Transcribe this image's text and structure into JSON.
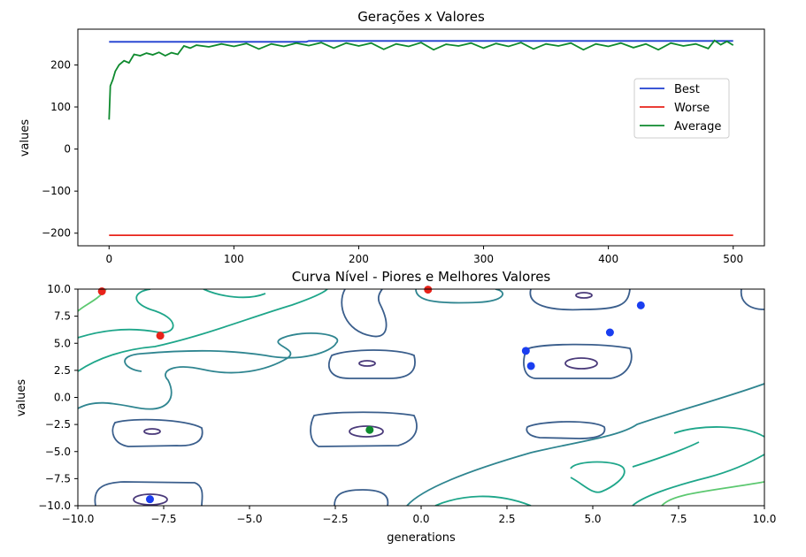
{
  "chart_data": [
    {
      "type": "line",
      "title": "Gerações x Valores",
      "xlabel": "",
      "ylabel": "values",
      "xlim": [
        -25,
        525
      ],
      "ylim": [
        -230,
        285
      ],
      "xticks": [
        0,
        100,
        200,
        300,
        400,
        500
      ],
      "yticks": [
        -200,
        -100,
        0,
        100,
        200
      ],
      "legend_position": "center-right",
      "series": [
        {
          "name": "Best",
          "color": "#1f3fd0",
          "points": [
            [
              0,
              255
            ],
            [
              158,
              255
            ],
            [
              160,
              257
            ],
            [
              500,
              257
            ]
          ]
        },
        {
          "name": "Worse",
          "color": "#e8231a",
          "points": [
            [
              0,
              -205
            ],
            [
              500,
              -205
            ]
          ]
        },
        {
          "name": "Average",
          "color": "#0e8a2e",
          "points": [
            [
              0,
              70
            ],
            [
              1,
              150
            ],
            [
              3,
              165
            ],
            [
              5,
              185
            ],
            [
              8,
              200
            ],
            [
              12,
              210
            ],
            [
              16,
              205
            ],
            [
              20,
              225
            ],
            [
              25,
              222
            ],
            [
              30,
              228
            ],
            [
              35,
              224
            ],
            [
              40,
              230
            ],
            [
              45,
              222
            ],
            [
              50,
              229
            ],
            [
              55,
              225
            ],
            [
              60,
              245
            ],
            [
              65,
              240
            ],
            [
              70,
              247
            ],
            [
              80,
              243
            ],
            [
              90,
              250
            ],
            [
              100,
              244
            ],
            [
              110,
              251
            ],
            [
              120,
              238
            ],
            [
              130,
              250
            ],
            [
              140,
              244
            ],
            [
              150,
              252
            ],
            [
              160,
              246
            ],
            [
              170,
              253
            ],
            [
              180,
              240
            ],
            [
              190,
              252
            ],
            [
              200,
              245
            ],
            [
              210,
              252
            ],
            [
              220,
              237
            ],
            [
              230,
              250
            ],
            [
              240,
              244
            ],
            [
              250,
              253
            ],
            [
              260,
              236
            ],
            [
              270,
              249
            ],
            [
              280,
              245
            ],
            [
              290,
              252
            ],
            [
              300,
              240
            ],
            [
              310,
              251
            ],
            [
              320,
              244
            ],
            [
              330,
              253
            ],
            [
              340,
              238
            ],
            [
              350,
              250
            ],
            [
              360,
              245
            ],
            [
              370,
              252
            ],
            [
              380,
              236
            ],
            [
              390,
              250
            ],
            [
              400,
              244
            ],
            [
              410,
              252
            ],
            [
              420,
              241
            ],
            [
              430,
              250
            ],
            [
              440,
              236
            ],
            [
              450,
              252
            ],
            [
              460,
              245
            ],
            [
              470,
              250
            ],
            [
              480,
              239
            ],
            [
              485,
              258
            ],
            [
              490,
              248
            ],
            [
              495,
              256
            ],
            [
              500,
              247
            ]
          ]
        }
      ]
    },
    {
      "type": "contour",
      "title": "Curva Nível - Piores e Melhores Valores",
      "xlabel": "generations",
      "ylabel": "values",
      "xlim": [
        -10,
        10
      ],
      "ylim": [
        -10,
        10
      ],
      "xticks": [
        -10.0,
        -7.5,
        -5.0,
        -2.5,
        0.0,
        2.5,
        5.0,
        7.5,
        10.0
      ],
      "yticks": [
        -10.0,
        -7.5,
        -5.0,
        -2.5,
        0.0,
        2.5,
        5.0,
        7.5,
        10.0
      ],
      "worst_points": {
        "color": "#e8231a",
        "x": [
          -9.3,
          -7.6,
          0.2
        ],
        "y": [
          9.8,
          5.7,
          9.95
        ]
      },
      "best_points": {
        "color": "#1a3ef0",
        "x": [
          6.4,
          5.5,
          3.05,
          3.2,
          -7.9
        ],
        "y": [
          8.5,
          6.0,
          4.3,
          2.9,
          -9.4
        ]
      },
      "center_point": {
        "color": "#0e8a2e",
        "x": [
          -1.5
        ],
        "y": [
          -3.0
        ]
      },
      "level_colors": [
        "#4a3a7a",
        "#3a5e8c",
        "#2f8590",
        "#1ea68a",
        "#5cc870"
      ]
    }
  ]
}
